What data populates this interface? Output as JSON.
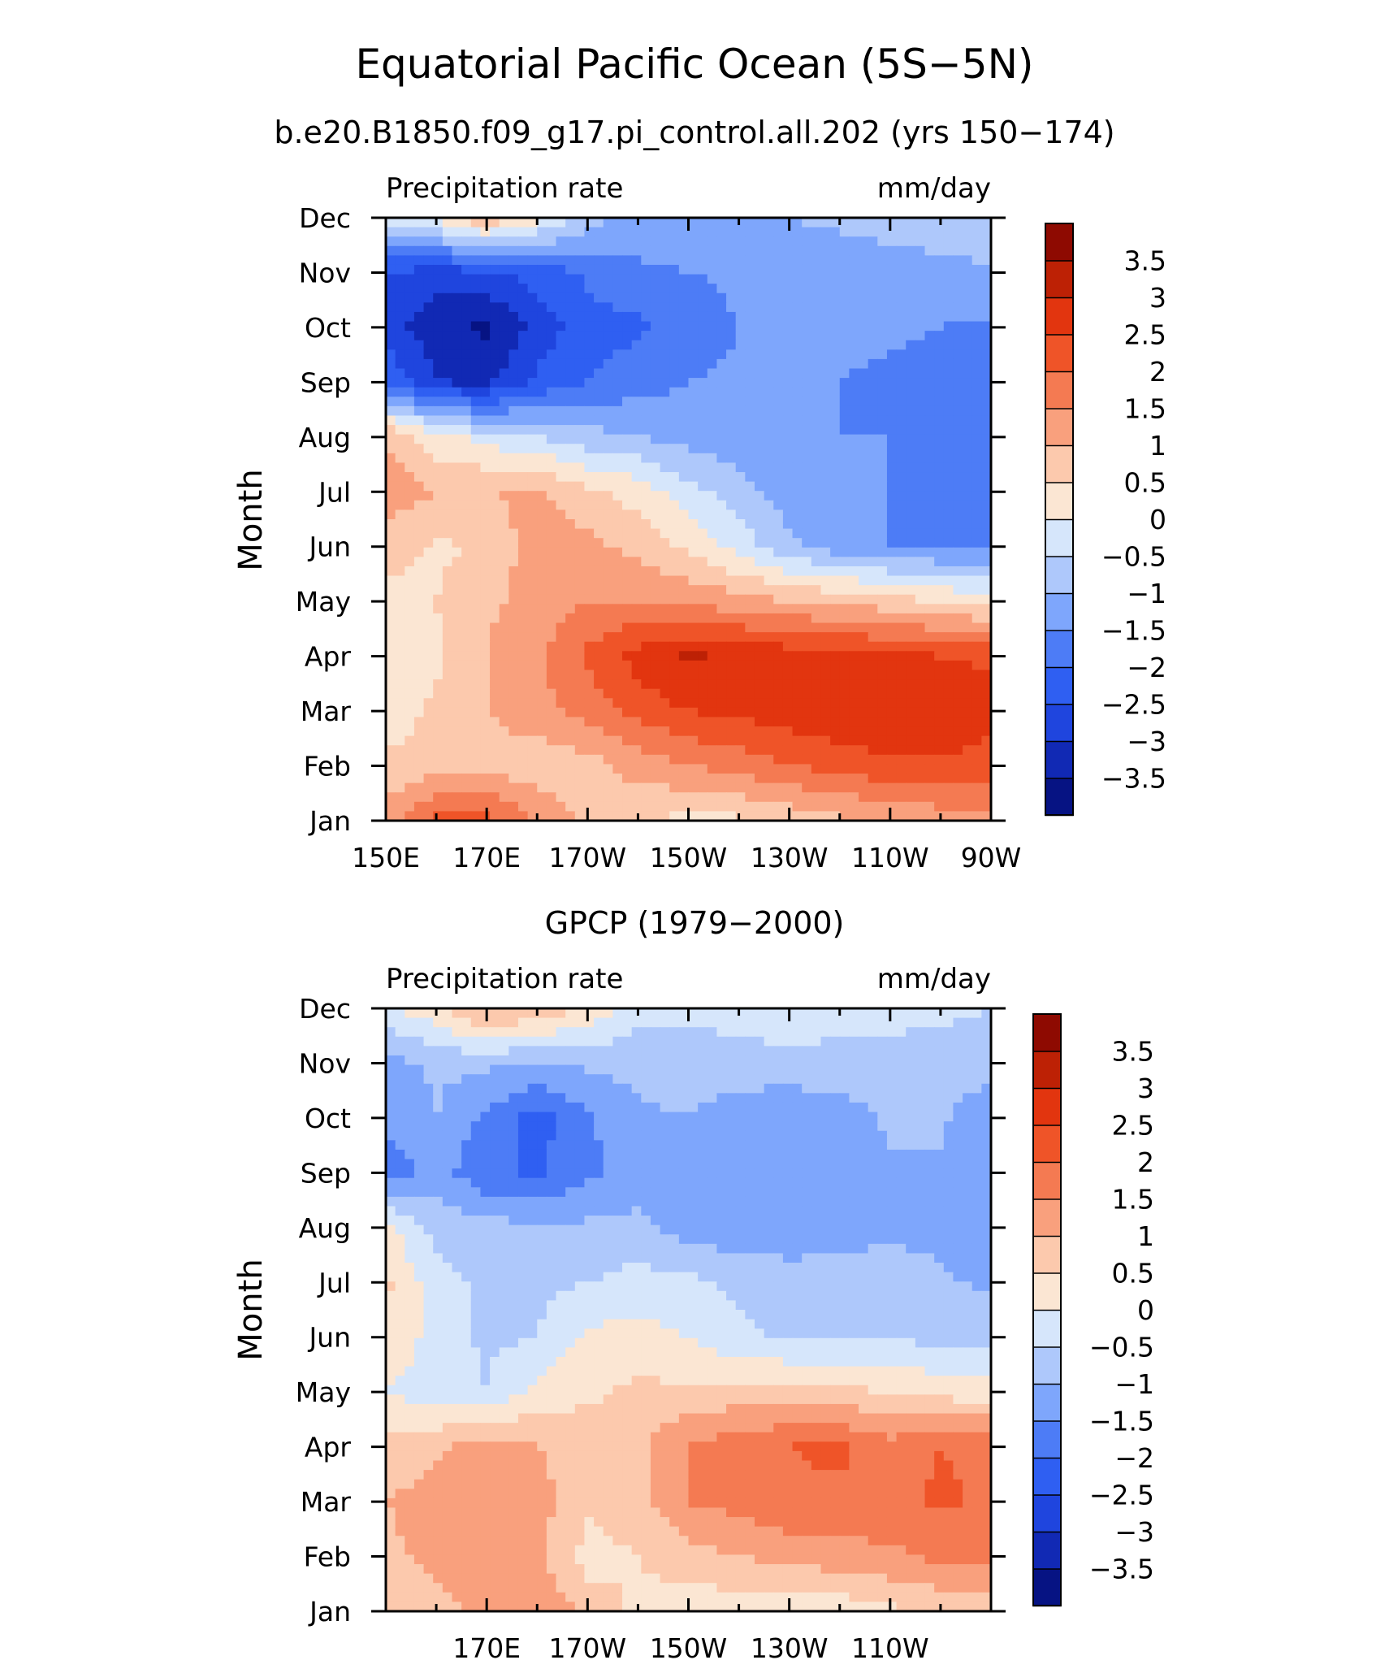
{
  "figure": {
    "title": "Equatorial Pacific Ocean (5S−5N)"
  },
  "chart_data": [
    {
      "type": "heatmap",
      "title": "b.e20.B1850.f09_g17.pi_control.all.202 (yrs 150−174)",
      "left_string": "Precipitation rate",
      "right_string": "mm/day",
      "ylabel": "Month",
      "x_ticks": [
        "150E",
        "170E",
        "170W",
        "150W",
        "130W",
        "110W",
        "90W"
      ],
      "y_ticks": [
        "Jan",
        "Feb",
        "Mar",
        "Apr",
        "May",
        "Jun",
        "Jul",
        "Aug",
        "Sep",
        "Oct",
        "Nov",
        "Dec"
      ],
      "x": [
        "150E",
        "160E",
        "170E",
        "180",
        "170W",
        "160W",
        "150W",
        "140W",
        "130W",
        "120W",
        "110W",
        "100W",
        "90W"
      ],
      "y": [
        "Jan",
        "Feb",
        "Mar",
        "Apr",
        "May",
        "Jun",
        "Jul",
        "Aug",
        "Sep",
        "Oct",
        "Nov",
        "Dec"
      ],
      "z": [
        [
          1.2,
          2.2,
          2.2,
          1.5,
          0.8,
          0.6,
          0.3,
          0.4,
          0.6,
          0.9,
          1.0,
          1.2,
          1.3
        ],
        [
          0.6,
          0.8,
          0.8,
          0.7,
          0.8,
          1.2,
          1.5,
          1.7,
          2.0,
          2.2,
          2.4,
          2.4,
          2.2
        ],
        [
          0.2,
          0.6,
          1.0,
          1.3,
          1.7,
          2.2,
          2.5,
          2.6,
          2.8,
          2.9,
          3.0,
          3.0,
          2.8
        ],
        [
          0.1,
          0.4,
          1.0,
          1.4,
          2.1,
          2.7,
          3.1,
          2.9,
          2.8,
          2.7,
          2.6,
          2.5,
          2.4
        ],
        [
          0.2,
          0.5,
          0.9,
          1.2,
          1.5,
          1.5,
          1.4,
          1.2,
          1.0,
          0.9,
          0.7,
          0.5,
          0.3
        ],
        [
          0.8,
          0.4,
          0.6,
          1.3,
          1.2,
          0.8,
          0.4,
          -0.2,
          -0.9,
          -1.3,
          -1.5,
          -1.6,
          -1.7
        ],
        [
          1.3,
          1.0,
          1.0,
          1.1,
          0.6,
          0.3,
          -0.3,
          -0.8,
          -1.2,
          -1.4,
          -1.5,
          -1.6,
          -1.8
        ],
        [
          1.0,
          0.2,
          -0.2,
          -0.5,
          -0.8,
          -1.0,
          -1.2,
          -1.3,
          -1.4,
          -1.5,
          -1.5,
          -1.6,
          -1.9
        ],
        [
          -2.0,
          -3.0,
          -3.1,
          -2.4,
          -2.0,
          -1.7,
          -1.5,
          -1.4,
          -1.4,
          -1.5,
          -1.6,
          -1.8,
          -2.0
        ],
        [
          -2.8,
          -3.3,
          -3.6,
          -2.8,
          -2.2,
          -2.1,
          -1.8,
          -1.5,
          -1.4,
          -1.4,
          -1.4,
          -1.5,
          -1.6
        ],
        [
          -2.5,
          -2.8,
          -2.6,
          -2.3,
          -1.9,
          -1.6,
          -1.5,
          -1.4,
          -1.3,
          -1.3,
          -1.2,
          -1.1,
          -1.0
        ],
        [
          -0.3,
          0.2,
          1.0,
          0.2,
          -0.8,
          -1.2,
          -1.2,
          -1.0,
          -1.0,
          -0.9,
          -0.8,
          -0.8,
          -0.9
        ]
      ],
      "colorbar": {
        "labels": [
          "−3.5",
          "−3",
          "−2.5",
          "−2",
          "−1.5",
          "−1",
          "−0.5",
          "0",
          "0.5",
          "1",
          "1.5",
          "2",
          "2.5",
          "3",
          "3.5"
        ],
        "levels": [
          -3.5,
          -3,
          -2.5,
          -2,
          -1.5,
          -1,
          -0.5,
          0,
          0.5,
          1,
          1.5,
          2,
          2.5,
          3,
          3.5
        ],
        "colors": [
          "#061383",
          "#1129b4",
          "#1f45de",
          "#2f5ff2",
          "#4d7cf6",
          "#7ea6fc",
          "#aec8fb",
          "#d6e6fb",
          "#fbe6d3",
          "#fcc9ad",
          "#f9a07d",
          "#f47a52",
          "#ef5428",
          "#e2350f",
          "#bd2105",
          "#8e0a01"
        ]
      }
    },
    {
      "type": "heatmap",
      "title": "GPCP (1979−2000)",
      "left_string": "Precipitation rate",
      "right_string": "mm/day",
      "ylabel": "Month",
      "x_ticks": [
        "170E",
        "170W",
        "150W",
        "130W",
        "110W"
      ],
      "y_ticks": [
        "Jan",
        "Feb",
        "Mar",
        "Apr",
        "May",
        "Jun",
        "Jul",
        "Aug",
        "Sep",
        "Oct",
        "Nov",
        "Dec"
      ],
      "x": [
        "150E",
        "160E",
        "170E",
        "180",
        "170W",
        "160W",
        "150W",
        "140W",
        "130W",
        "120W",
        "110W",
        "100W",
        "90W"
      ],
      "y": [
        "Jan",
        "Feb",
        "Mar",
        "Apr",
        "May",
        "Jun",
        "Jul",
        "Aug",
        "Sep",
        "Oct",
        "Nov",
        "Dec"
      ],
      "z": [
        [
          0.6,
          0.9,
          1.1,
          1.5,
          0.8,
          0.4,
          0.2,
          0.2,
          0.0,
          0.2,
          0.4,
          0.6,
          0.7
        ],
        [
          0.9,
          1.1,
          1.3,
          1.1,
          0.3,
          0.5,
          0.8,
          1.0,
          1.2,
          1.3,
          1.4,
          1.6,
          1.6
        ],
        [
          1.0,
          1.2,
          1.4,
          1.2,
          0.6,
          0.8,
          1.5,
          1.7,
          1.9,
          1.9,
          1.8,
          2.1,
          1.9
        ],
        [
          0.6,
          0.9,
          1.2,
          1.0,
          0.8,
          0.9,
          1.5,
          1.8,
          2.0,
          2.1,
          1.7,
          2.0,
          1.9
        ],
        [
          0.0,
          -0.3,
          -0.5,
          0.2,
          0.4,
          0.6,
          0.6,
          0.7,
          0.7,
          0.6,
          0.5,
          0.3,
          0.2
        ],
        [
          0.4,
          -0.2,
          -0.6,
          -0.5,
          0.1,
          0.2,
          0.0,
          -0.4,
          -0.6,
          -0.6,
          -0.6,
          -0.6,
          -0.7
        ],
        [
          0.6,
          -0.3,
          -0.6,
          -0.6,
          -0.5,
          -0.3,
          -0.4,
          -0.6,
          -0.7,
          -0.7,
          -0.7,
          -0.9,
          -1.1
        ],
        [
          0.2,
          -0.7,
          -0.8,
          -0.9,
          -0.9,
          -0.9,
          -1.2,
          -1.4,
          -1.4,
          -1.3,
          -1.1,
          -1.2,
          -1.5
        ],
        [
          -1.8,
          -1.3,
          -1.9,
          -2.1,
          -1.6,
          -1.2,
          -1.4,
          -1.4,
          -1.4,
          -1.4,
          -1.1,
          -1.1,
          -1.5
        ],
        [
          -1.4,
          -1.0,
          -1.6,
          -2.2,
          -1.6,
          -1.1,
          -1.0,
          -1.3,
          -1.4,
          -1.3,
          -0.9,
          -0.9,
          -1.5
        ],
        [
          -1.2,
          -0.9,
          -0.9,
          -1.0,
          -0.9,
          -0.8,
          -0.7,
          -0.7,
          -0.7,
          -0.6,
          -0.6,
          -0.7,
          -0.7
        ],
        [
          -0.1,
          0.4,
          1.2,
          0.9,
          0.4,
          -0.3,
          -0.4,
          -0.3,
          -0.1,
          -0.4,
          -0.4,
          -0.4,
          -0.5
        ]
      ],
      "colorbar": {
        "labels": [
          "−3.5",
          "−3",
          "−2.5",
          "−2",
          "−1.5",
          "−1",
          "−0.5",
          "0",
          "0.5",
          "1",
          "1.5",
          "2",
          "2.5",
          "3",
          "3.5"
        ],
        "levels": [
          -3.5,
          -3,
          -2.5,
          -2,
          -1.5,
          -1,
          -0.5,
          0,
          0.5,
          1,
          1.5,
          2,
          2.5,
          3,
          3.5
        ],
        "colors": [
          "#061383",
          "#1129b4",
          "#1f45de",
          "#2f5ff2",
          "#4d7cf6",
          "#7ea6fc",
          "#aec8fb",
          "#d6e6fb",
          "#fbe6d3",
          "#fcc9ad",
          "#f9a07d",
          "#f47a52",
          "#ef5428",
          "#e2350f",
          "#bd2105",
          "#8e0a01"
        ]
      }
    }
  ]
}
